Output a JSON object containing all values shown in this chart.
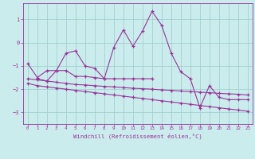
{
  "x": [
    0,
    1,
    2,
    3,
    4,
    5,
    6,
    7,
    8,
    9,
    10,
    11,
    12,
    13,
    14,
    15,
    16,
    17,
    18,
    19,
    20,
    21,
    22,
    23
  ],
  "line1": [
    -0.9,
    -1.5,
    -1.2,
    -1.2,
    -0.45,
    -0.35,
    -1.0,
    -1.1,
    -1.55,
    -0.2,
    0.55,
    -0.15,
    0.5,
    1.35,
    0.75,
    -0.45,
    -1.25,
    -1.55,
    -2.8,
    -1.85,
    -2.35,
    -2.45,
    -2.45,
    -2.45
  ],
  "line2_x": [
    1,
    2,
    3,
    4,
    5,
    6,
    7,
    8,
    9,
    10,
    11,
    12,
    13
  ],
  "line2_y": [
    -1.55,
    -1.65,
    -1.2,
    -1.2,
    -1.45,
    -1.45,
    -1.5,
    -1.55,
    -1.55,
    -1.55,
    -1.55,
    -1.55,
    -1.55
  ],
  "line3": [
    -1.55,
    -1.6,
    -1.65,
    -1.7,
    -1.75,
    -1.8,
    -1.82,
    -1.85,
    -1.88,
    -1.9,
    -1.93,
    -1.96,
    -1.98,
    -2.0,
    -2.03,
    -2.05,
    -2.08,
    -2.1,
    -2.13,
    -2.15,
    -2.18,
    -2.2,
    -2.22,
    -2.25
  ],
  "line4": [
    -1.75,
    -1.85,
    -1.9,
    -1.95,
    -2.0,
    -2.05,
    -2.1,
    -2.15,
    -2.2,
    -2.25,
    -2.3,
    -2.35,
    -2.4,
    -2.45,
    -2.5,
    -2.55,
    -2.6,
    -2.65,
    -2.7,
    -2.75,
    -2.8,
    -2.85,
    -2.9,
    -2.95
  ],
  "color": "#993399",
  "bg_color": "#cbecec",
  "grid_color": "#99cccc",
  "xlabel": "Windchill (Refroidissement éolien,°C)",
  "ylim": [
    -3.5,
    1.7
  ],
  "yticks": [
    -3,
    -2,
    -1,
    0,
    1
  ],
  "xlim": [
    -0.5,
    23.5
  ],
  "xticks": [
    0,
    1,
    2,
    3,
    4,
    5,
    6,
    7,
    8,
    9,
    10,
    11,
    12,
    13,
    14,
    15,
    16,
    17,
    18,
    19,
    20,
    21,
    22,
    23
  ]
}
